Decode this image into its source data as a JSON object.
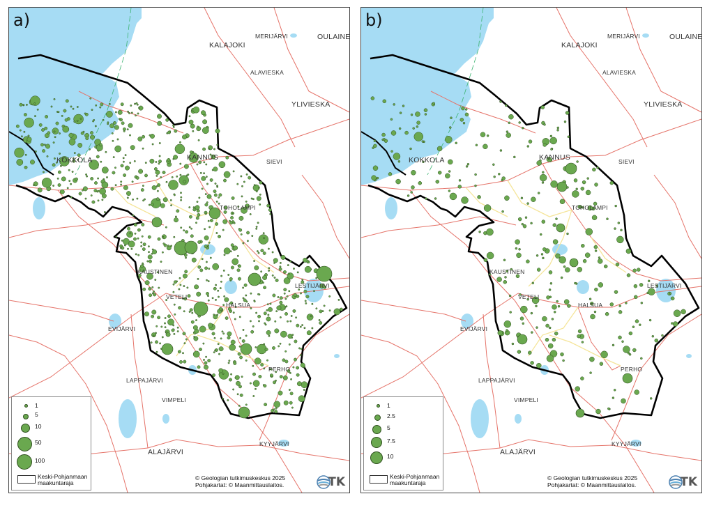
{
  "panels": [
    {
      "label": "a)",
      "legend": {
        "values": [
          "1",
          "5",
          "10",
          "50",
          "100"
        ],
        "boundary_label": "Keski-Pohjanmaan maakuntaraja"
      }
    },
    {
      "label": "b)",
      "legend": {
        "values": [
          "1",
          "2.5",
          "5",
          "7.5",
          "10"
        ],
        "boundary_label": "Keski-Pohjanmaan maakuntaraja"
      }
    }
  ],
  "towns": [
    "MERIJÄRVI",
    "OULAINEN",
    "KALAJOKI",
    "ALAVIESKA",
    "YLIVIESKA",
    "KOKKOLA",
    "KANNUS",
    "SIEVI",
    "TOHOLAMPI",
    "KAUSTINEN",
    "LESTIJÄRVI",
    "VETELI",
    "HALSUA",
    "EVIJÄRVI",
    "LAPPAJÄRVI",
    "VIMPELI",
    "PERHO",
    "KYYJÄRVI",
    "ALAJÄRVI"
  ],
  "credit": {
    "line1": "© Geologian tutkimuskeskus 2025",
    "line2": "Pohjakartat: © Maanmittauslaitos."
  },
  "logo": "GTK",
  "colors": {
    "sea": "#a6dcf4",
    "lake": "#a6dcf4",
    "symbol": "#6aa84f",
    "boundary": "#000000",
    "road": "#e57369",
    "minor_road": "#f5e59a"
  }
}
